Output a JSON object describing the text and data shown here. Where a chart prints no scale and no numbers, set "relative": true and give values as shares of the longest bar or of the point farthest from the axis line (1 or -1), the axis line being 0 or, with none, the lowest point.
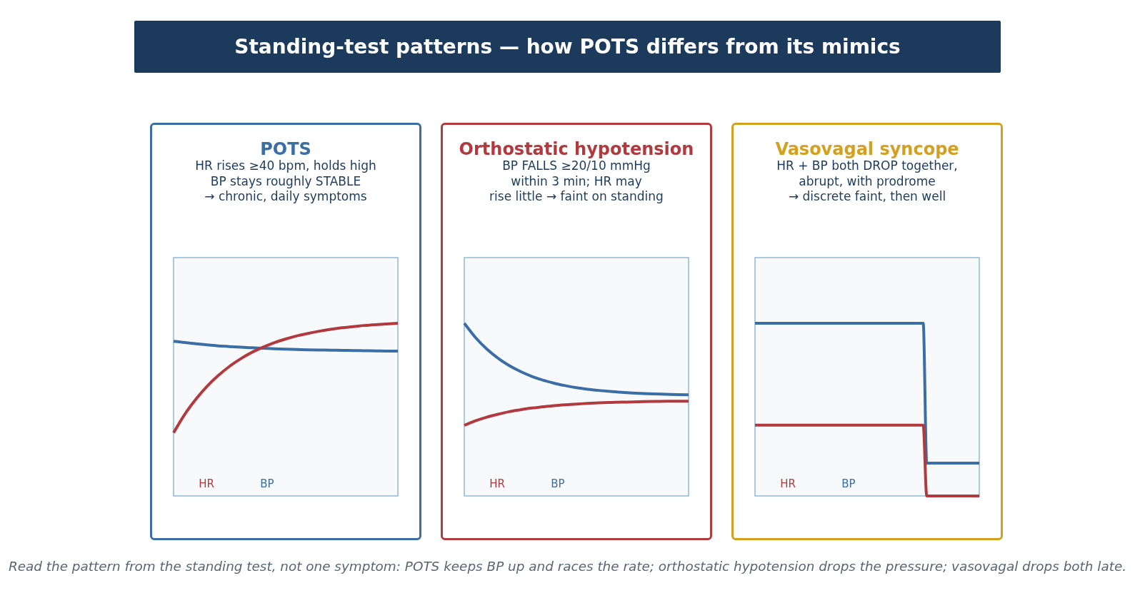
{
  "chart_data": [
    {
      "type": "other",
      "title": "Standing-test patterns — how POTS differs from its mimics"
    },
    {
      "type": "line",
      "title": "POTS",
      "subtitle": "HR rises ≥40 bpm, holds high\nBP stays roughly STABLE\n→ chronic, daily symptoms",
      "relative": true,
      "legend": "bottom left",
      "categories": [
        null,
        null,
        null,
        null,
        null,
        null,
        null,
        null,
        null,
        null,
        null,
        null,
        null,
        null,
        null,
        null,
        null,
        null,
        null,
        null,
        null
      ],
      "series": [
        {
          "name": "HR",
          "color": "#b03a3e",
          "values": [
            0.366,
            0.473,
            0.561,
            0.636,
            0.698,
            0.751,
            0.795,
            0.832,
            0.862,
            0.888,
            0.909,
            0.927,
            0.941,
            0.954,
            0.965,
            0.974,
            0.98,
            0.987,
            0.992,
            0.996,
            1.0
          ]
        },
        {
          "name": "BP",
          "color": "#3a6ea5",
          "values": [
            0.896,
            0.888,
            0.881,
            0.875,
            0.869,
            0.865,
            0.861,
            0.858,
            0.855,
            0.852,
            0.85,
            0.848,
            0.846,
            0.845,
            0.844,
            0.843,
            0.842,
            0.841,
            0.84,
            0.839,
            0.839
          ]
        }
      ]
    },
    {
      "type": "line",
      "title": "Orthostatic hypotension",
      "subtitle": "BP FALLS ≥20/10 mmHg\nwithin 3 min; HR may\nrise little → faint on standing",
      "relative": true,
      "legend": "bottom left",
      "categories": [
        null,
        null,
        null,
        null,
        null,
        null,
        null,
        null,
        null,
        null,
        null,
        null,
        null,
        null,
        null,
        null,
        null,
        null,
        null,
        null,
        null
      ],
      "series": [
        {
          "name": "HR",
          "color": "#b03a3e",
          "values": [
            0.409,
            0.435,
            0.456,
            0.473,
            0.488,
            0.499,
            0.509,
            0.516,
            0.523,
            0.528,
            0.532,
            0.536,
            0.539,
            0.541,
            0.543,
            0.544,
            0.546,
            0.547,
            0.548,
            0.548,
            0.549
          ]
        },
        {
          "name": "BP",
          "color": "#3a6ea5",
          "values": [
            1.0,
            0.917,
            0.851,
            0.798,
            0.755,
            0.721,
            0.693,
            0.671,
            0.653,
            0.639,
            0.627,
            0.618,
            0.611,
            0.605,
            0.6,
            0.596,
            0.593,
            0.591,
            0.589,
            0.587,
            0.586
          ]
        }
      ]
    },
    {
      "type": "line",
      "title": "Vasovagal syncope",
      "subtitle": "HR + BP both DROP together,\nabrupt, with prodrome\n→ discrete faint, then well",
      "relative": true,
      "legend": "bottom left",
      "categories": [
        null,
        null,
        null,
        null,
        null,
        null,
        null,
        null,
        null,
        null,
        null,
        null,
        null,
        null,
        null,
        null,
        null,
        null,
        null,
        null,
        null,
        null,
        null,
        null,
        null,
        null,
        null,
        null,
        null,
        null,
        null,
        null,
        null,
        null,
        null,
        null,
        null,
        null,
        null,
        null,
        null,
        null,
        null,
        null,
        null,
        null,
        null,
        null,
        null,
        null,
        null,
        null,
        null,
        null,
        null,
        null,
        null,
        null,
        null,
        null,
        null,
        null,
        null,
        null,
        null
      ],
      "series": [
        {
          "name": "HR",
          "color": "#b03a3e",
          "values": [
            0.41,
            0.41,
            0.41,
            0.41,
            0.41,
            0.41,
            0.41,
            0.41,
            0.41,
            0.41,
            0.41,
            0.41,
            0.41,
            0.41,
            0.41,
            0.41,
            0.41,
            0.41,
            0.41,
            0.41,
            0.41,
            0.41,
            0.41,
            0.41,
            0.41,
            0.41,
            0.41,
            0.41,
            0.41,
            0.41,
            0.41,
            0.41,
            0.41,
            0.41,
            0.41,
            0.41,
            0.41,
            0.41,
            0.41,
            0.41,
            0.41,
            0.41,
            0.41,
            0.41,
            0.41,
            0.41,
            0.41,
            0.41,
            0.41,
            0,
            0,
            0,
            0,
            0,
            0,
            0,
            0,
            0,
            0,
            0,
            0,
            0,
            0,
            0,
            0
          ]
        },
        {
          "name": "BP",
          "color": "#3a6ea5",
          "values": [
            1,
            1,
            1,
            1,
            1,
            1,
            1,
            1,
            1,
            1,
            1,
            1,
            1,
            1,
            1,
            1,
            1,
            1,
            1,
            1,
            1,
            1,
            1,
            1,
            1,
            1,
            1,
            1,
            1,
            1,
            1,
            1,
            1,
            1,
            1,
            1,
            1,
            1,
            1,
            1,
            1,
            1,
            1,
            1,
            1,
            1,
            1,
            1,
            1,
            0.19,
            0.19,
            0.19,
            0.19,
            0.19,
            0.19,
            0.19,
            0.19,
            0.19,
            0.19,
            0.19,
            0.19,
            0.19,
            0.19,
            0.19,
            0.19
          ]
        }
      ]
    },
    {
      "type": "other",
      "annotations": [
        "Read the pattern from the standing test, not one symptom: POTS keeps BP up and races the rate; orthostatic hypotension drops the pressure; vasovagal drops both late."
      ]
    }
  ]
}
